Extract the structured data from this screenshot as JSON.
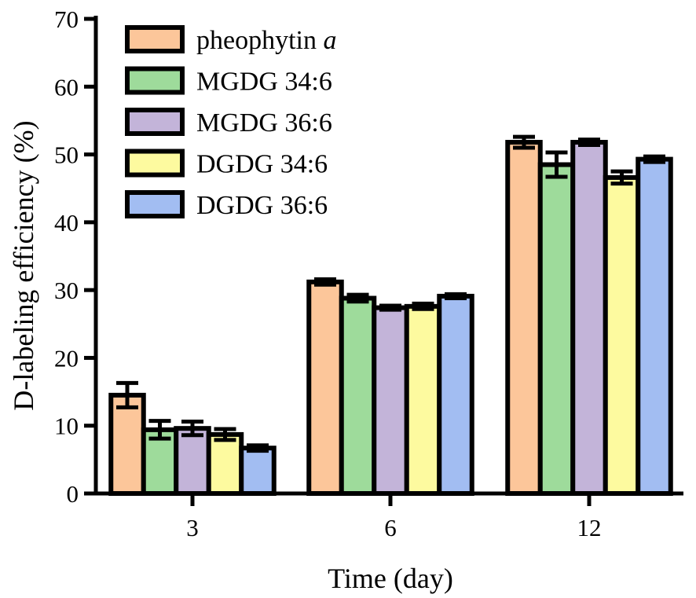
{
  "chart_data": {
    "type": "bar",
    "title": "",
    "xlabel": "Time (day)",
    "ylabel": "D-labeling efficiency (%)",
    "ylim": [
      0,
      70
    ],
    "yticks": [
      0,
      10,
      20,
      30,
      40,
      50,
      60,
      70
    ],
    "grid": false,
    "legend_position": "top-left",
    "categories": [
      "3",
      "6",
      "12"
    ],
    "series": [
      {
        "name": "pheophytin",
        "name_suffix": "a",
        "color": "#FCC69A",
        "values": [
          14.5,
          31.2,
          51.8
        ],
        "errors": [
          1.8,
          0.4,
          0.8
        ]
      },
      {
        "name": "MGDG 34:6",
        "name_suffix": "",
        "color": "#9EDB9B",
        "values": [
          9.4,
          28.8,
          48.5
        ],
        "errors": [
          1.3,
          0.5,
          1.8
        ]
      },
      {
        "name": "MGDG 36:6",
        "name_suffix": "",
        "color": "#C3B4D9",
        "values": [
          9.6,
          27.4,
          51.8
        ],
        "errors": [
          1.0,
          0.3,
          0.4
        ]
      },
      {
        "name": "DGDG 34:6",
        "name_suffix": "",
        "color": "#FDFA9F",
        "values": [
          8.7,
          27.6,
          46.6
        ],
        "errors": [
          0.8,
          0.4,
          0.9
        ]
      },
      {
        "name": "DGDG 36:6",
        "name_suffix": "",
        "color": "#A2BDF2",
        "values": [
          6.7,
          29.1,
          49.3
        ],
        "errors": [
          0.4,
          0.3,
          0.4
        ]
      }
    ]
  }
}
